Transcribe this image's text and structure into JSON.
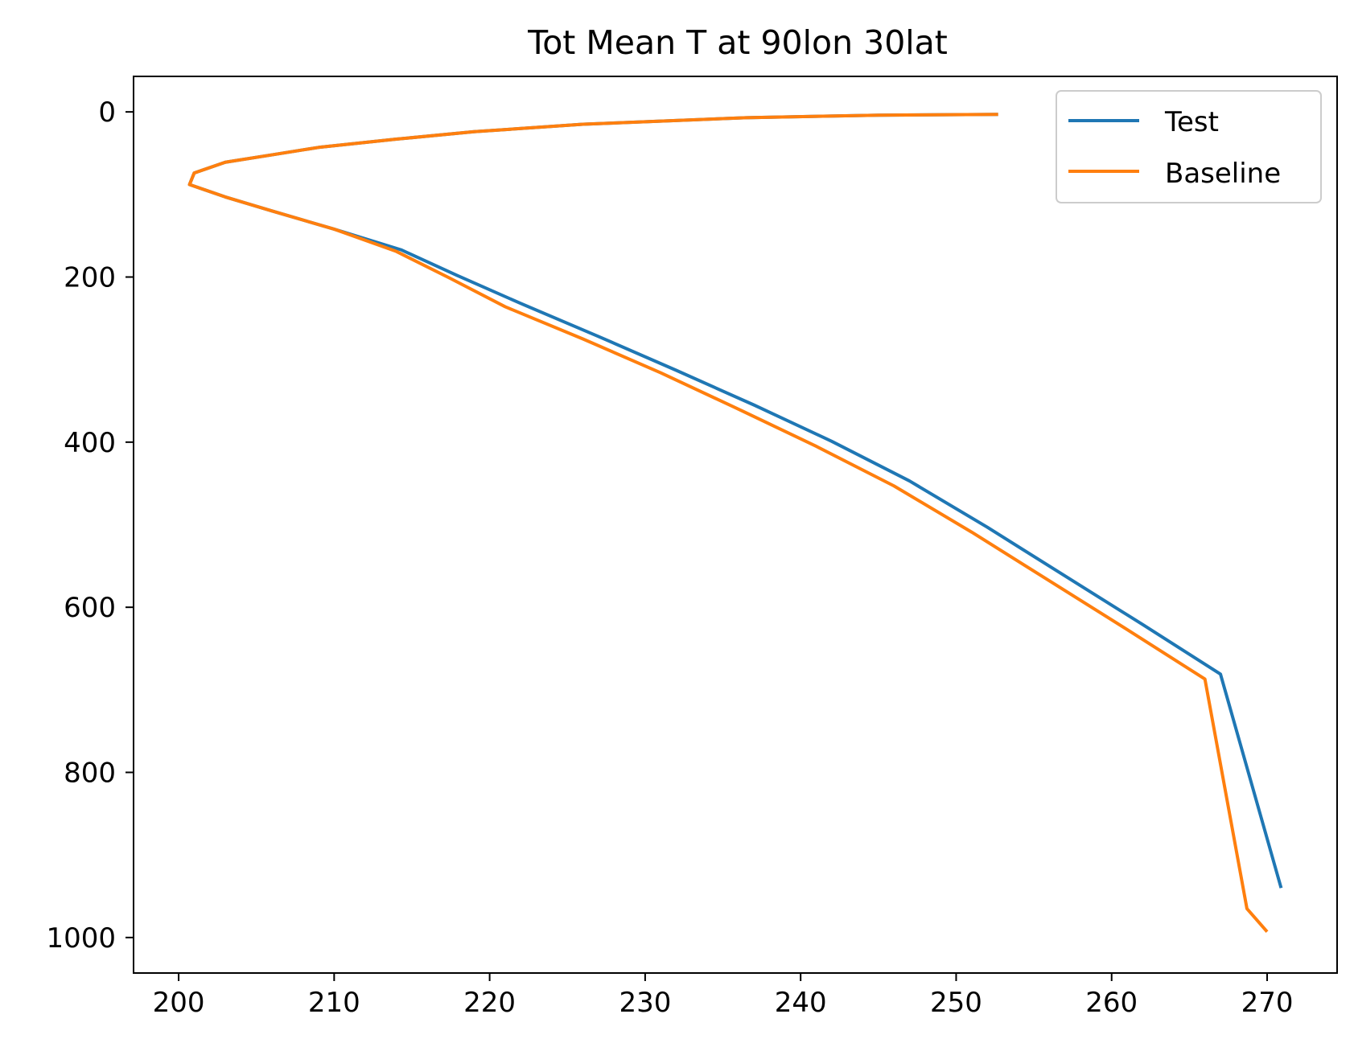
{
  "chart_data": {
    "type": "line",
    "title": "Tot Mean T at 90lon 30lat",
    "xlabel": "",
    "ylabel": "",
    "xlim": [
      197.1,
      274.5
    ],
    "ylim": [
      1043,
      -43
    ],
    "y_inverted": true,
    "xticks": [
      200,
      210,
      220,
      230,
      240,
      250,
      260,
      270
    ],
    "xtick_labels": [
      "200",
      "210",
      "220",
      "230",
      "240",
      "250",
      "260",
      "270"
    ],
    "yticks": [
      0,
      200,
      400,
      600,
      800,
      1000
    ],
    "ytick_labels": [
      "0",
      "200",
      "400",
      "600",
      "800",
      "1000"
    ],
    "grid": false,
    "legend_position": "upper right",
    "series": [
      {
        "name": "Test",
        "color": "#1f77b4",
        "x": [
          252.7,
          245.0,
          236.5,
          226.0,
          219.0,
          214.0,
          209.0,
          206.0,
          203.0,
          201.0,
          200.7,
          203.0,
          206.0,
          210.0,
          214.3,
          217.9,
          222.0,
          227.0,
          232.0,
          237.0,
          242.0,
          247.0,
          252.0,
          257.0,
          262.0,
          267.0,
          270.9
        ],
        "y": [
          3,
          4,
          7,
          15,
          24,
          33,
          43,
          52,
          61,
          74,
          88,
          103,
          120,
          142,
          167,
          198,
          232,
          272,
          313,
          355,
          399,
          447,
          503,
          562,
          621,
          681,
          940
        ]
      },
      {
        "name": "Baseline",
        "color": "#ff7f0e",
        "x": [
          252.7,
          245.0,
          236.5,
          226.0,
          219.0,
          214.0,
          209.0,
          206.0,
          203.0,
          201.0,
          200.7,
          203.0,
          206.0,
          210.0,
          214.0,
          217.4,
          221.0,
          226.0,
          231.0,
          236.0,
          241.0,
          246.0,
          251.0,
          256.0,
          261.0,
          266.0,
          268.7,
          270.0
        ],
        "y": [
          3,
          4,
          7,
          15,
          24,
          33,
          43,
          52,
          61,
          74,
          88,
          103,
          120,
          142,
          169,
          201,
          236,
          275,
          316,
          360,
          405,
          453,
          509,
          568,
          627,
          687,
          965,
          993
        ]
      }
    ]
  },
  "colors": {
    "test": "#1f77b4",
    "baseline": "#ff7f0e",
    "axes": "#000000",
    "legend_border": "#cccccc"
  }
}
